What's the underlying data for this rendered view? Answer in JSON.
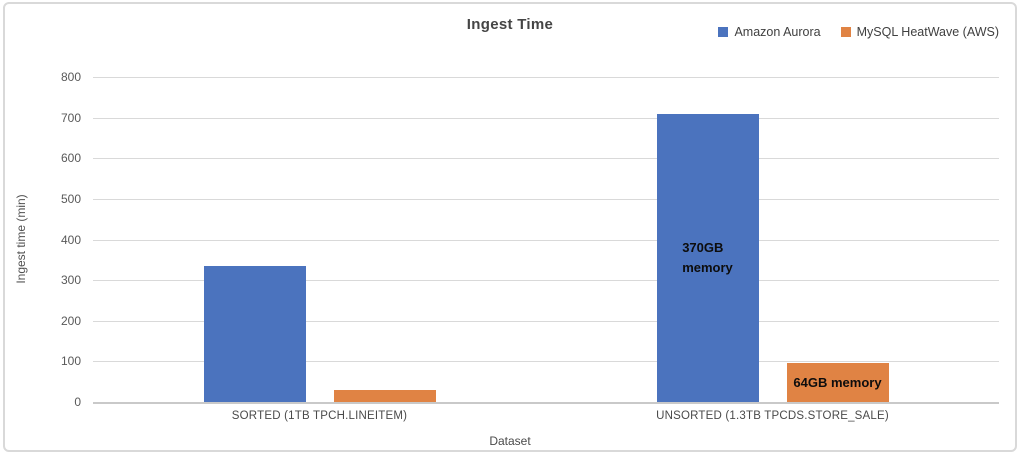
{
  "chart_data": {
    "type": "bar",
    "title": "Ingest Time",
    "xlabel": "Dataset",
    "ylabel": "Ingest time (min)",
    "categories": [
      "SORTED (1TB TPCH.LINEITEM)",
      "UNSORTED (1.3TB TPCDS.STORE_SALE)"
    ],
    "series": [
      {
        "name": "Amazon Aurora",
        "color": "#4b73be",
        "values": [
          335,
          710
        ],
        "bar_labels": [
          null,
          "370GB\nmemory"
        ]
      },
      {
        "name": "MySQL HeatWave (AWS)",
        "color": "#e08344",
        "values": [
          30,
          95
        ],
        "bar_labels": [
          null,
          "64GB memory"
        ]
      }
    ],
    "ylim": [
      0,
      800
    ],
    "ytick_step": 100,
    "grid": true,
    "legend_position": "top-right"
  },
  "colors": {
    "gridline": "#d9d9d9",
    "axis_line": "#c9c9c9",
    "frame_border": "#d9d9d9",
    "tick_text": "#595959",
    "title_text": "#454545",
    "data_label_text": "#0d0d0d"
  }
}
